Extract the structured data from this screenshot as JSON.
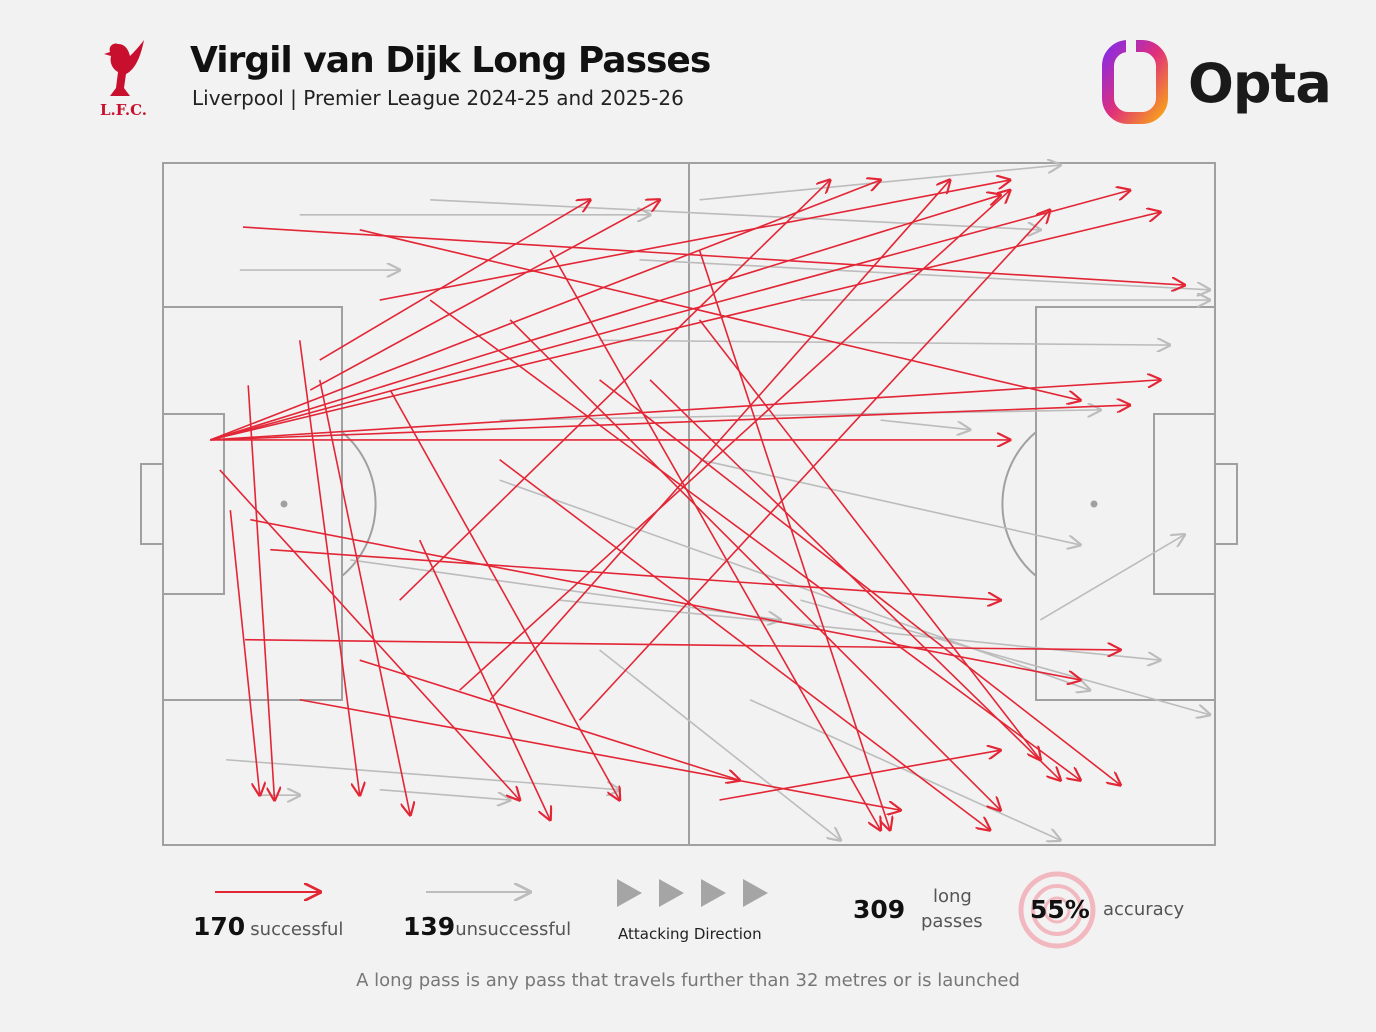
{
  "header": {
    "title": "Virgil van Dijk Long Passes",
    "subtitle": "Liverpool | Premier League 2024-25 and 2025-26",
    "club_logo_text": "L.F.C.",
    "brand": "Opta"
  },
  "legend": {
    "successful_count": "170",
    "successful_label": "successful",
    "unsuccessful_count": "139",
    "unsuccessful_label": "unsuccessful",
    "direction_label": "Attacking Direction",
    "total_count": "309",
    "total_label_1": "long",
    "total_label_2": "passes",
    "accuracy_value": "55%",
    "accuracy_label": "accuracy"
  },
  "footnote": "A long pass is any pass that travels further than 32 metres or is launched",
  "colors": {
    "successful": "#e32636",
    "unsuccessful": "#bcbcbc",
    "background": "#f2f2f2",
    "pitch_lines": "#999999"
  },
  "chart_data": {
    "type": "pass-map",
    "x_range": [
      0,
      100
    ],
    "y_range": [
      0,
      100
    ],
    "attacking_direction": "left-to-right",
    "note": "representative sample of pass arrows; [x_start, y_start, x_end, y_end] in pitch units",
    "series": [
      {
        "name": "successful",
        "passes": [
          [
            7.6,
            9.4,
            97.1,
            17.9
          ],
          [
            4.5,
            40.6,
            94.8,
            7.2
          ],
          [
            4.5,
            40.6,
            91.9,
            4
          ],
          [
            4.5,
            40.6,
            79.6,
            4.7
          ],
          [
            4.5,
            40.6,
            68.2,
            2.5
          ],
          [
            4.5,
            40.6,
            94.8,
            31.8
          ],
          [
            4.5,
            40.6,
            91.9,
            35.5
          ],
          [
            4.5,
            40.6,
            80.5,
            40.6
          ],
          [
            7.8,
            69.9,
            91,
            71.4
          ],
          [
            8.1,
            32.6,
            10.6,
            93.4
          ],
          [
            13,
            26,
            18.7,
            92.7
          ],
          [
            14.9,
            31.8,
            23.5,
            95.6
          ],
          [
            21.6,
            33.3,
            43.4,
            93.4
          ],
          [
            25.4,
            20.1,
            87.2,
            90.5
          ],
          [
            33,
            23,
            79.6,
            94.9
          ],
          [
            41.5,
            31.8,
            91,
            91.2
          ],
          [
            18.7,
            9.8,
            87.2,
            34.8
          ],
          [
            8.3,
            52.3,
            87.2,
            75.8
          ],
          [
            36.8,
            12.8,
            68.2,
            97.8
          ],
          [
            51,
            12.8,
            69.1,
            97.8
          ],
          [
            14.9,
            28.9,
            40.6,
            5.4
          ],
          [
            14,
            33.3,
            47.2,
            5.4
          ],
          [
            22.5,
            64.1,
            63.4,
            2.5
          ],
          [
            28.2,
            77.3,
            80.5,
            4
          ],
          [
            31.1,
            78.7,
            74.8,
            2.5
          ],
          [
            10.2,
            56.7,
            79.6,
            64.1
          ],
          [
            52.9,
            93.4,
            79.6,
            86.1
          ],
          [
            39.6,
            81.7,
            84.3,
            6.9
          ],
          [
            18.7,
            72.9,
            54.8,
            90.5
          ],
          [
            24.4,
            55.3,
            36.8,
            96.3
          ],
          [
            6.4,
            50.9,
            9.2,
            92.7
          ],
          [
            13,
            78.7,
            70.1,
            94.9
          ],
          [
            46.3,
            31.8,
            85.3,
            90.5
          ],
          [
            51,
            23,
            83.4,
            87.5
          ],
          [
            5.4,
            45,
            33.9,
            93.4
          ],
          [
            32,
            43.5,
            78.6,
            97.8
          ],
          [
            20.6,
            20.1,
            80.5,
            2.5
          ]
        ]
      },
      {
        "name": "unsuccessful",
        "passes": [
          [
            13,
            7.6,
            46.3,
            7.6
          ],
          [
            7.3,
            15.7,
            22.5,
            15.7
          ],
          [
            25.4,
            5.4,
            83.4,
            9.8
          ],
          [
            6,
            87.5,
            43.4,
            91.9
          ],
          [
            20.6,
            91.9,
            33,
            93.4
          ],
          [
            9.2,
            92.7,
            13,
            92.7
          ],
          [
            51,
            5.4,
            85.3,
            0.3
          ],
          [
            60.6,
            20.1,
            99.5,
            20.1
          ],
          [
            41.5,
            26,
            95.7,
            26.7
          ],
          [
            51,
            43.5,
            87.2,
            56
          ],
          [
            83.4,
            67,
            97.1,
            54.5
          ],
          [
            60.6,
            64.1,
            99.5,
            80.9
          ],
          [
            37.7,
            64.1,
            94.8,
            72.9
          ],
          [
            32,
            46.5,
            88.1,
            77.3
          ],
          [
            55.8,
            78.7,
            85.3,
            99.3
          ],
          [
            41.5,
            71.4,
            64.4,
            99.3
          ],
          [
            17.8,
            58.2,
            58.7,
            67
          ],
          [
            68.2,
            37.7,
            76.7,
            39.1
          ],
          [
            32,
            37.7,
            89.1,
            36.2
          ],
          [
            45.3,
            14.2,
            99.5,
            18.6
          ]
        ]
      }
    ]
  }
}
